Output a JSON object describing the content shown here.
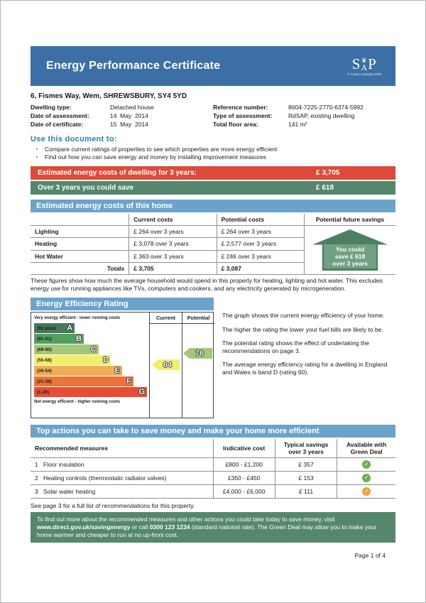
{
  "header": {
    "title": "Energy Performance Certificate",
    "logo": {
      "s": "S",
      "a": "A",
      "p": "P",
      "copyright": "© Crown copyright 2009"
    }
  },
  "property": {
    "address": "6, Fismes Way, Wem, SHREWSBURY, SY4 5YD",
    "details_left": [
      {
        "label": "Dwelling type:",
        "value": "Detached house"
      },
      {
        "label": "Date of assessment:",
        "value": "14  May  2014"
      },
      {
        "label": "Date of certificate:",
        "value": "15  May  2014"
      }
    ],
    "details_right": [
      {
        "label": "Reference number:",
        "value": "8604-7225-2770-6374-5992"
      },
      {
        "label": "Type of assessment:",
        "value": "RdSAP, existing dwelling"
      },
      {
        "label": "Total floor area:",
        "value": "141 m²"
      }
    ]
  },
  "use_document": {
    "heading": "Use this document to:",
    "bullet_icon": "▪",
    "bullets": [
      "Compare current ratings of properties to see which properties are more energy efficient",
      "Find out how you can save energy and money by installing improvement measures"
    ]
  },
  "cost_summary": {
    "rows": [
      {
        "label": "Estimated energy costs of dwelling for 3 years:",
        "value": "£ 3,705",
        "color": "#dc4b3b"
      },
      {
        "label": "Over 3 years you could save",
        "value": "£ 618",
        "color": "#55876c"
      }
    ]
  },
  "costs_table": {
    "section_title": "Estimated energy costs of this home",
    "headers": {
      "current": "Current costs",
      "potential": "Potential costs",
      "future": "Potential future savings"
    },
    "rows": [
      {
        "name": "Lighting",
        "current": "£ 264 over 3 years",
        "potential": "£ 264 over 3 years"
      },
      {
        "name": "Heating",
        "current": "£ 3,078 over 3 years",
        "potential": "£ 2,577 over 3 years"
      },
      {
        "name": "Hot Water",
        "current": "£ 363 over 3 years",
        "potential": "£ 246 over 3 years"
      }
    ],
    "totals": {
      "name": "Totals",
      "current": "£ 3,705",
      "potential": "£ 3,087"
    },
    "savings_house": {
      "lines": [
        "You could",
        "save £ 618",
        "over 3 years"
      ],
      "house_color": "#4e7f63",
      "inner_color": "#71a083"
    },
    "note": "These figures show how much the average household would spend in this property for heating, lighting and hot water. This excludes energy use for running appliances like TVs, computers and cookers, and any electricity generated by microgeneration."
  },
  "chart_data": {
    "type": "epc-rating",
    "section_title": "Energy Efficiency Rating",
    "columns": {
      "current": "Current",
      "potential": "Potential"
    },
    "top_label": "Very energy efficient - lower running costs",
    "bottom_label": "Not energy efficient - higher running costs",
    "bands": [
      {
        "range": "(92 plus)",
        "letter": "A",
        "color": "#45785a",
        "width_pct": 36
      },
      {
        "range": "(81-91)",
        "letter": "B",
        "color": "#54a05e",
        "width_pct": 44
      },
      {
        "range": "(69-80)",
        "letter": "C",
        "color": "#a3c878",
        "width_pct": 57
      },
      {
        "range": "(55-68)",
        "letter": "D",
        "color": "#f3ee69",
        "width_pct": 68
      },
      {
        "range": "(39-54)",
        "letter": "E",
        "color": "#efae54",
        "width_pct": 78
      },
      {
        "range": "(21-38)",
        "letter": "F",
        "color": "#ec7339",
        "width_pct": 88
      },
      {
        "range": "(1-20)",
        "letter": "G",
        "color": "#e74c34",
        "width_pct": 100
      }
    ],
    "current": {
      "value": 64,
      "band": "D",
      "color": "#f3ee69"
    },
    "potential": {
      "value": 76,
      "band": "C",
      "color": "#a3c878"
    },
    "notes": [
      "The graph shows the current energy efficiency of your home.",
      "The higher the rating the lower your fuel bills are likely to be.",
      "The potential rating shows the effect of undertaking the recommendations on page 3.",
      "The average energy efficiency rating for a dwelling in England and Wales is band D (rating 60)."
    ]
  },
  "top_actions": {
    "section_title": "Top actions you can take to save money and make your home more efficient",
    "headers": {
      "measures": "Recommended measures",
      "cost": "Indicative cost",
      "savings": "Typical savings over 3 years",
      "green_deal": "Available with Green Deal"
    },
    "check_icon": "✓",
    "rows": [
      {
        "num": "1",
        "measure": "Floor insulation",
        "cost": "£800 - £1,200",
        "savings": "£ 357",
        "badge_color": "#72ae4c"
      },
      {
        "num": "2",
        "measure": "Heating controls (thermostatic radiator valves)",
        "cost": "£350 - £450",
        "savings": "£ 153",
        "badge_color": "#72ae4c"
      },
      {
        "num": "3",
        "measure": "Solar water heating",
        "cost": "£4,000 - £6,000",
        "savings": "£ 111",
        "badge_color": "#eda23f"
      }
    ],
    "see_page_note": "See page 3 for a full list of recommendations for this property."
  },
  "footer": {
    "info_box_segments": [
      {
        "text": "To find out more about the recommended measures and other actions you could take today to save money, visit ",
        "bold": false
      },
      {
        "text": "www.direct.gov.uk/savingenergy",
        "bold": true
      },
      {
        "text": " or call ",
        "bold": false
      },
      {
        "text": "0300 123 1234",
        "bold": true
      },
      {
        "text": " (standard national rate). The Green Deal may allow you to make your home warmer and cheaper to run at no up-front cost.",
        "bold": false
      }
    ],
    "page_number": "Page 1 of 4"
  },
  "colors": {
    "header_blue": "#3c6fa5",
    "section_bar_blue": "#6ba3cb",
    "teal_heading": "#2f7da8",
    "red_banner": "#dc4b3b",
    "green_banner": "#55876c",
    "green_info_box": "#55876c"
  }
}
